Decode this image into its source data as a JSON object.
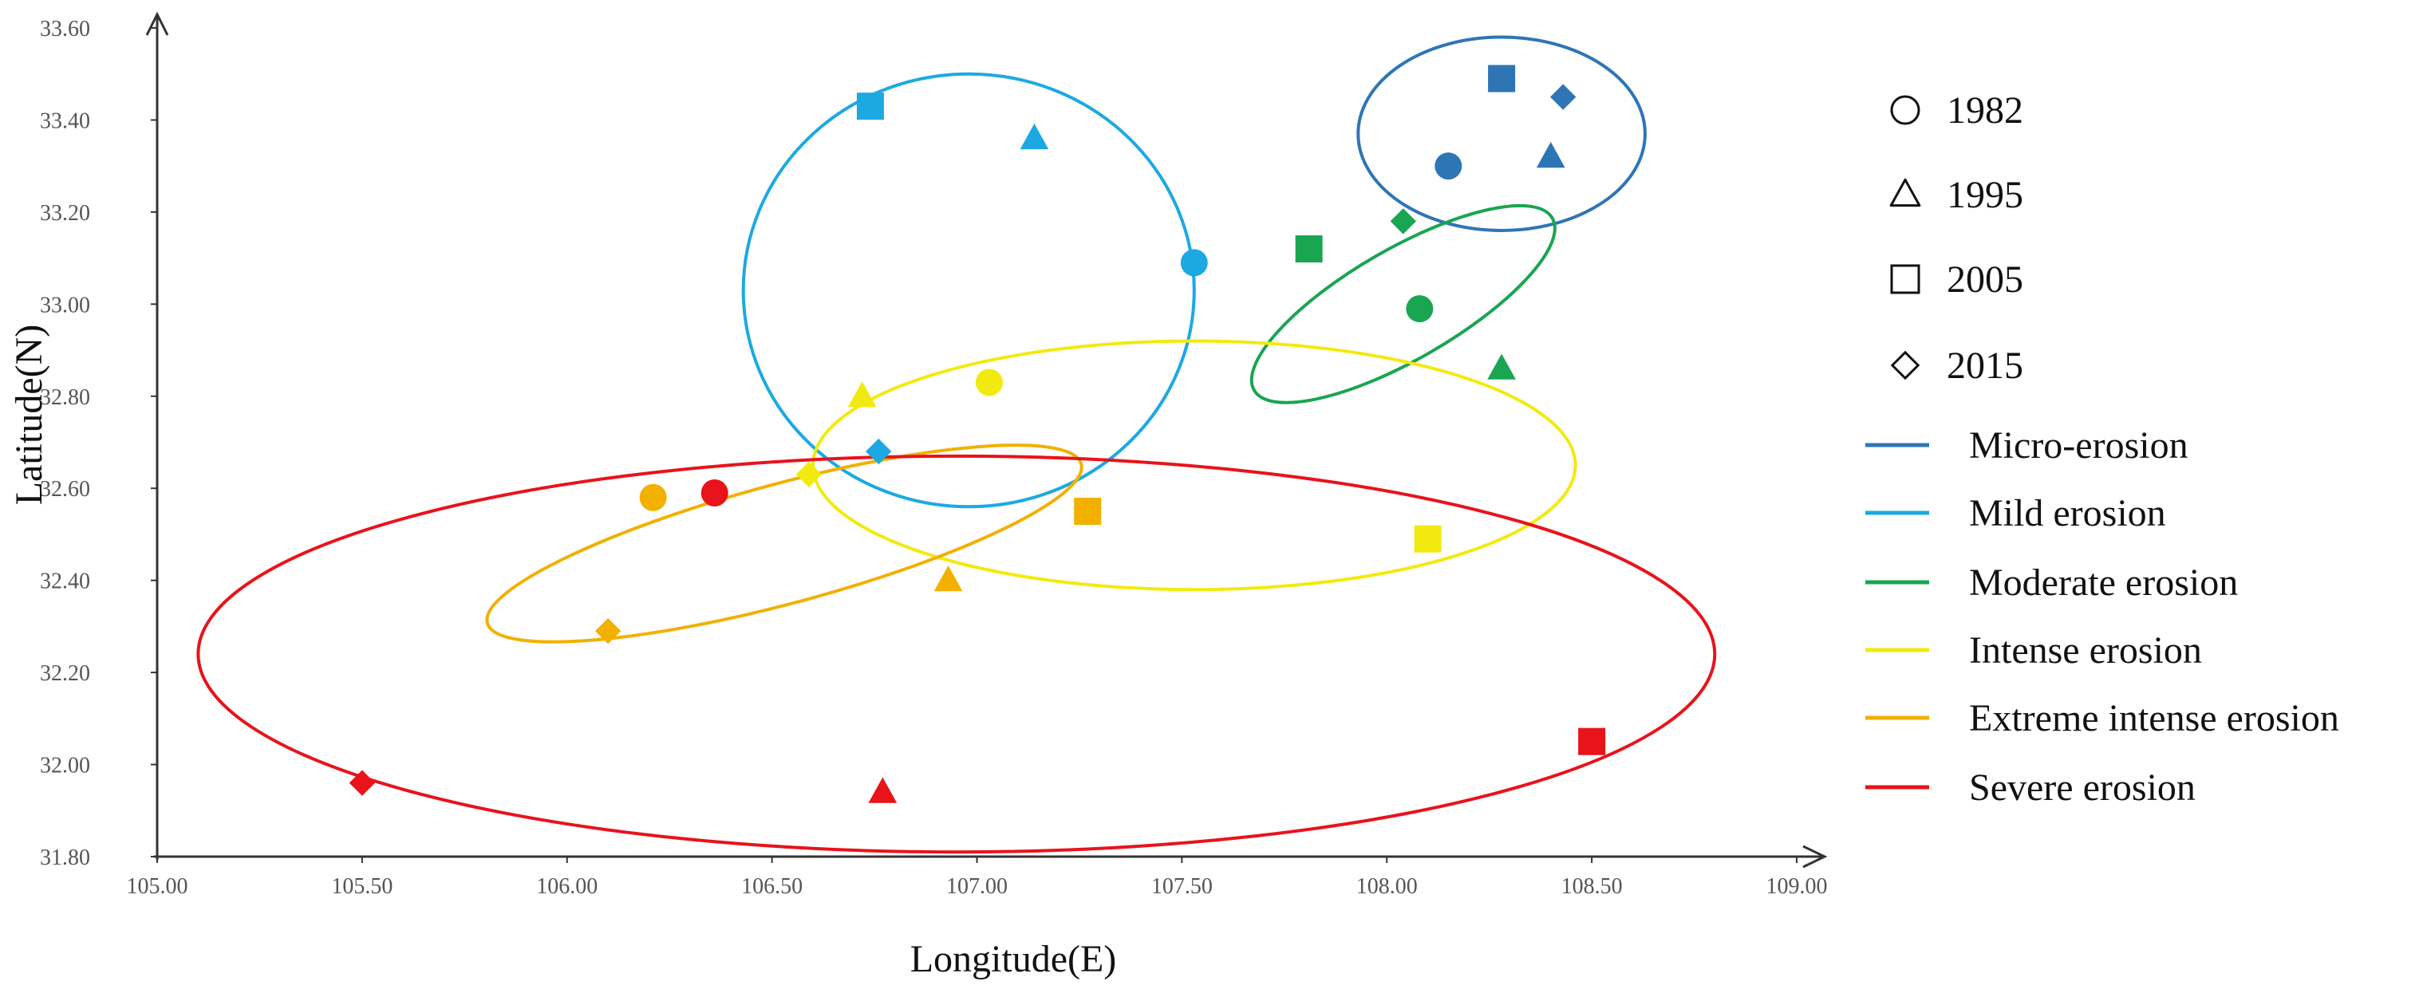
{
  "chart_data": {
    "type": "scatter",
    "xlabel": "Longitude(E)",
    "ylabel": "Latitude(N)",
    "xlim": [
      105.0,
      109.0
    ],
    "ylim": [
      31.8,
      33.6
    ],
    "x_ticks": [
      "105.00",
      "105.50",
      "106.00",
      "106.50",
      "107.00",
      "107.50",
      "108.00",
      "108.50",
      "109.00"
    ],
    "y_ticks": [
      "31.80",
      "32.00",
      "32.20",
      "32.40",
      "32.60",
      "32.80",
      "33.00",
      "33.20",
      "33.40",
      "33.60"
    ],
    "year_legend": [
      {
        "label": "1982",
        "marker": "circle"
      },
      {
        "label": "1995",
        "marker": "triangle"
      },
      {
        "label": "2005",
        "marker": "square"
      },
      {
        "label": "2015",
        "marker": "diamond"
      }
    ],
    "categories": [
      {
        "name": "Micro-erosion",
        "color": "#2E75B6",
        "ellipse": {
          "cx": 108.28,
          "cy": 33.37,
          "rx": 0.35,
          "ry": 0.21,
          "angle": 0
        },
        "points": [
          {
            "year": "1982",
            "x": 108.15,
            "y": 33.3
          },
          {
            "year": "1995",
            "x": 108.4,
            "y": 33.32
          },
          {
            "year": "2005",
            "x": 108.28,
            "y": 33.49
          },
          {
            "year": "2015",
            "x": 108.43,
            "y": 33.45
          }
        ]
      },
      {
        "name": "Mild erosion",
        "color": "#1CA9E1",
        "ellipse": {
          "cx": 106.98,
          "cy": 33.03,
          "rx": 0.55,
          "ry": 0.47,
          "angle": 0
        },
        "points": [
          {
            "year": "1982",
            "x": 107.53,
            "y": 33.09
          },
          {
            "year": "1995",
            "x": 107.14,
            "y": 33.36
          },
          {
            "year": "2005",
            "x": 106.74,
            "y": 33.43
          },
          {
            "year": "2015",
            "x": 106.76,
            "y": 32.68
          }
        ]
      },
      {
        "name": "Moderate erosion",
        "color": "#1AA551",
        "ellipse": {
          "cx": 108.04,
          "cy": 33.0,
          "rx": 0.42,
          "ry": 0.12,
          "angle": 30
        },
        "points": [
          {
            "year": "1982",
            "x": 108.08,
            "y": 32.99
          },
          {
            "year": "1995",
            "x": 108.28,
            "y": 32.86
          },
          {
            "year": "2005",
            "x": 107.81,
            "y": 33.12
          },
          {
            "year": "2015",
            "x": 108.04,
            "y": 33.18
          }
        ]
      },
      {
        "name": "Intense erosion",
        "color": "#F2EA0E",
        "ellipse": {
          "cx": 107.53,
          "cy": 32.65,
          "rx": 0.93,
          "ry": 0.27,
          "angle": 0
        },
        "points": [
          {
            "year": "1982",
            "x": 107.03,
            "y": 32.83
          },
          {
            "year": "1995",
            "x": 106.72,
            "y": 32.8
          },
          {
            "year": "2005",
            "x": 108.1,
            "y": 32.49
          },
          {
            "year": "2015",
            "x": 106.59,
            "y": 32.63
          }
        ]
      },
      {
        "name": "Extreme intense erosion",
        "color": "#F2B000",
        "ellipse": {
          "cx": 106.53,
          "cy": 32.48,
          "rx": 0.75,
          "ry": 0.13,
          "angle": 15
        },
        "points": [
          {
            "year": "1982",
            "x": 106.21,
            "y": 32.58
          },
          {
            "year": "1995",
            "x": 106.93,
            "y": 32.4
          },
          {
            "year": "2005",
            "x": 107.27,
            "y": 32.55
          },
          {
            "year": "2015",
            "x": 106.1,
            "y": 32.29
          }
        ]
      },
      {
        "name": "Severe erosion",
        "color": "#E8131B",
        "ellipse": {
          "cx": 106.95,
          "cy": 32.24,
          "rx": 1.85,
          "ry": 0.43,
          "angle": 0
        },
        "points": [
          {
            "year": "1982",
            "x": 106.36,
            "y": 32.59
          },
          {
            "year": "1995",
            "x": 106.77,
            "y": 31.94
          },
          {
            "year": "2005",
            "x": 108.5,
            "y": 32.05
          },
          {
            "year": "2015",
            "x": 105.5,
            "y": 31.96
          }
        ]
      }
    ]
  }
}
